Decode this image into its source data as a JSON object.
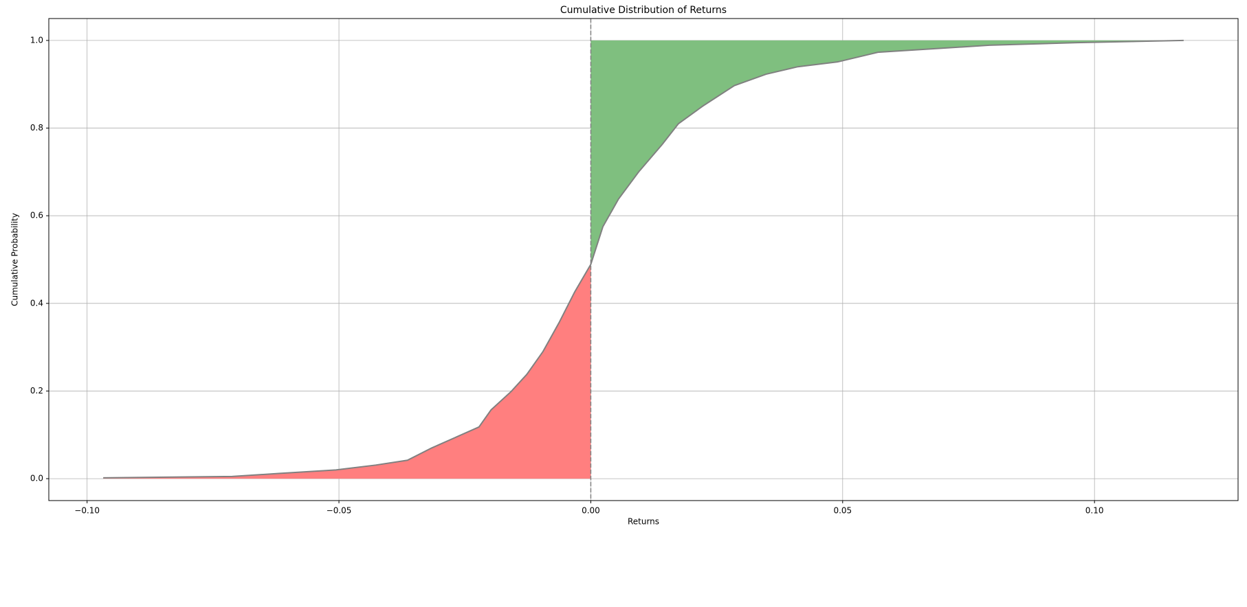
{
  "chart_data": {
    "type": "cdf",
    "title": "Cumulative Distribution of Returns",
    "x_label": "Returns",
    "y_label": "Cumulative Probability",
    "series": [
      {
        "color": "#808080",
        "x": [
          -0.0968,
          -0.0712,
          -0.0617,
          -0.0506,
          -0.0427,
          -0.0364,
          -0.0316,
          -0.0269,
          -0.0222,
          -0.0198,
          -0.0158,
          -0.0127,
          -0.0095,
          -0.0063,
          -0.0032,
          0,
          0.0024,
          0.0055,
          0.0095,
          0.0142,
          0.0174,
          0.0222,
          0.0285,
          0.0348,
          0.0411,
          0.049,
          0.057,
          0.0791,
          0.0965,
          0.1177
        ],
        "values": [
          0.002,
          0.005,
          0.012,
          0.02,
          0.031,
          0.042,
          0.07,
          0.094,
          0.118,
          0.157,
          0.199,
          0.238,
          0.29,
          0.356,
          0.426,
          0.489,
          0.575,
          0.638,
          0.7,
          0.763,
          0.81,
          0.85,
          0.897,
          0.923,
          0.94,
          0.951,
          0.973,
          0.989,
          0.995,
          1.0
        ]
      }
    ],
    "negative_fill_color": "#ff7f7f",
    "positive_fill_color": "#7fbf7f",
    "vline": 0,
    "xlim": [
      -0.1076,
      0.1285
    ],
    "ylim": [
      -0.05,
      1.05
    ],
    "xticks": [
      {
        "value": -0.1,
        "label": "−0.10"
      },
      {
        "value": -0.05,
        "label": "−0.05"
      },
      {
        "value": 0,
        "label": "0.00"
      },
      0.05,
      {
        "value": 0.1,
        "label": "0.10"
      }
    ],
    "yticks": [
      {
        "value": 0,
        "label": "0.0"
      },
      0.2,
      0.4,
      0.6,
      0.8,
      {
        "value": 1,
        "label": "1.0"
      }
    ],
    "grid": true
  }
}
